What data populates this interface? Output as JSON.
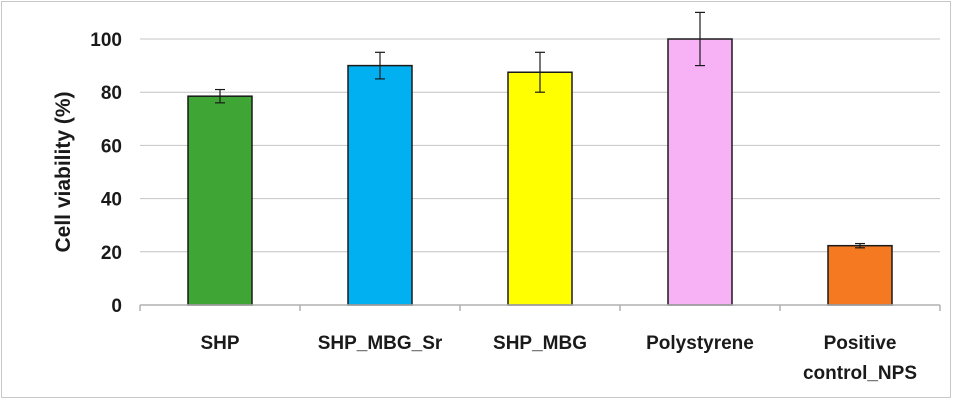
{
  "chart_data": {
    "type": "bar",
    "title": "",
    "xlabel": "",
    "ylabel": "Cell viability (%)",
    "ylim": [
      0,
      100
    ],
    "yticks": [
      0,
      20,
      40,
      60,
      80,
      100
    ],
    "grid": true,
    "categories": [
      [
        "SHP"
      ],
      [
        "SHP_MBG_Sr"
      ],
      [
        "SHP_MBG"
      ],
      [
        "Polystyrene"
      ],
      [
        "Positive",
        "control_NPS"
      ]
    ],
    "values": [
      78.5,
      90,
      87.5,
      100,
      22.3
    ],
    "errors": [
      2.5,
      5,
      7.5,
      10,
      0.8
    ],
    "colors": [
      "#3fa535",
      "#00b0f0",
      "#ffff00",
      "#f7b2f5",
      "#f47920"
    ]
  }
}
